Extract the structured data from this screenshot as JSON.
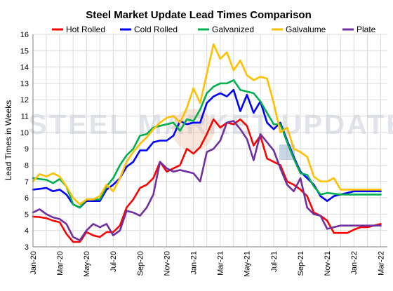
{
  "chart_data": {
    "type": "line",
    "title": "Steel Market Update Lead Times Comparison",
    "ylabel": "Lead Times in Weeks",
    "xlabel": "",
    "ylim": [
      3,
      16
    ],
    "yticks": [
      3,
      4,
      5,
      6,
      7,
      8,
      9,
      10,
      11,
      12,
      13,
      14,
      15,
      16
    ],
    "xlim": [
      0,
      26.5
    ],
    "xtick_labels": [
      "Jan-20",
      "Mar-20",
      "May-20",
      "Jul-20",
      "Sep-20",
      "Nov-20",
      "Jan-21",
      "Mar-21",
      "May-21",
      "Jul-21",
      "Sep-21",
      "Nov-21",
      "Jan-22",
      "Mar-22"
    ],
    "grid": true,
    "legend_position": "top",
    "watermark": "STEEL MARKET UPDATE",
    "x": [
      0,
      0.5,
      1,
      1.5,
      2,
      2.5,
      3,
      3.5,
      4,
      4.5,
      5,
      5.5,
      6,
      6.5,
      7,
      7.5,
      8,
      8.5,
      9,
      9.5,
      10,
      10.5,
      11,
      11.5,
      12,
      12.5,
      13,
      13.5,
      14,
      14.5,
      15,
      15.5,
      16,
      16.5,
      17,
      17.5,
      18,
      18.5,
      19,
      19.5,
      20,
      20.5,
      21,
      21.5,
      22,
      22.5,
      23,
      23.5,
      24,
      24.5,
      25,
      25.5,
      26
    ],
    "series": [
      {
        "name": "Hot Rolled",
        "color": "#ff0000",
        "values": [
          4.85,
          4.82,
          4.75,
          4.6,
          4.5,
          3.8,
          3.3,
          3.3,
          3.9,
          3.7,
          3.6,
          3.9,
          3.9,
          4.3,
          5.4,
          5.9,
          6.6,
          6.8,
          7.2,
          8.2,
          7.6,
          7.8,
          8.0,
          9.0,
          8.7,
          9.1,
          9.9,
          10.8,
          10.3,
          10.6,
          10.5,
          10.8,
          10.4,
          9.2,
          9.8,
          8.4,
          8.2,
          8.0,
          7.0,
          6.8,
          6.5,
          6.1,
          5.1,
          4.9,
          4.6,
          3.85,
          3.85,
          3.85,
          4.05,
          4.2,
          4.2,
          4.3,
          4.4
        ]
      },
      {
        "name": "Cold Rolled",
        "color": "#0000ff",
        "values": [
          6.5,
          6.55,
          6.6,
          6.4,
          6.5,
          6.2,
          5.6,
          5.4,
          5.8,
          5.8,
          5.8,
          6.5,
          6.8,
          7.2,
          7.9,
          8.2,
          8.9,
          8.9,
          9.4,
          9.5,
          9.5,
          9.8,
          10.7,
          10.5,
          10.6,
          10.6,
          11.8,
          12.2,
          12.4,
          12.2,
          12.6,
          11.3,
          12.3,
          11.2,
          11.9,
          10.6,
          10.2,
          10.6,
          9.5,
          8.5,
          7.6,
          7.2,
          6.8,
          6.1,
          5.8,
          6.1,
          6.2,
          6.3,
          6.4,
          6.4,
          6.4,
          6.4,
          6.4
        ]
      },
      {
        "name": "Galvanized",
        "color": "#00b050",
        "values": [
          7.2,
          7.15,
          7.1,
          6.9,
          7.15,
          6.7,
          5.6,
          5.4,
          5.9,
          5.9,
          5.9,
          6.7,
          7.2,
          8.0,
          8.6,
          9.0,
          9.8,
          9.9,
          10.3,
          10.4,
          10.5,
          10.6,
          10.1,
          10.8,
          10.7,
          11.4,
          12.4,
          12.8,
          13.0,
          13.0,
          13.2,
          12.6,
          12.5,
          12.4,
          11.9,
          11.2,
          10.5,
          10.5,
          9.4,
          8.4,
          7.5,
          7.4,
          6.7,
          6.2,
          6.3,
          6.25,
          6.2,
          6.2,
          6.2,
          6.2,
          6.2,
          6.2,
          6.2
        ]
      },
      {
        "name": "Galvalume",
        "color": "#ffc000",
        "values": [
          7.0,
          7.45,
          7.3,
          7.5,
          7.3,
          6.7,
          6.0,
          5.6,
          5.9,
          5.9,
          6.1,
          6.8,
          6.4,
          7.2,
          8.2,
          8.8,
          9.3,
          9.7,
          10.2,
          10.6,
          10.9,
          11.0,
          10.6,
          11.5,
          12.7,
          11.8,
          13.6,
          15.4,
          14.5,
          14.9,
          13.8,
          14.4,
          13.5,
          13.2,
          13.4,
          13.3,
          11.8,
          10.0,
          10.3,
          9.0,
          8.8,
          8.5,
          7.3,
          7.0,
          7.0,
          7.2,
          6.5,
          6.5,
          6.5,
          6.5,
          6.5,
          6.5,
          6.5
        ]
      },
      {
        "name": "Plate",
        "color": "#7030a0",
        "values": [
          5.1,
          5.3,
          5.0,
          4.8,
          4.7,
          4.4,
          3.6,
          3.4,
          4.0,
          4.4,
          4.2,
          4.4,
          3.7,
          4.0,
          5.2,
          5.1,
          4.9,
          5.4,
          6.2,
          8.2,
          7.8,
          7.6,
          7.7,
          7.6,
          7.5,
          7.0,
          8.8,
          9.0,
          9.5,
          10.6,
          10.7,
          10.2,
          9.6,
          8.3,
          9.9,
          9.4,
          8.9,
          7.8,
          6.8,
          6.4,
          7.2,
          5.4,
          5.0,
          4.9,
          4.1,
          4.2,
          4.3,
          4.3,
          4.3,
          4.3,
          4.3,
          4.3,
          4.3
        ]
      }
    ]
  }
}
